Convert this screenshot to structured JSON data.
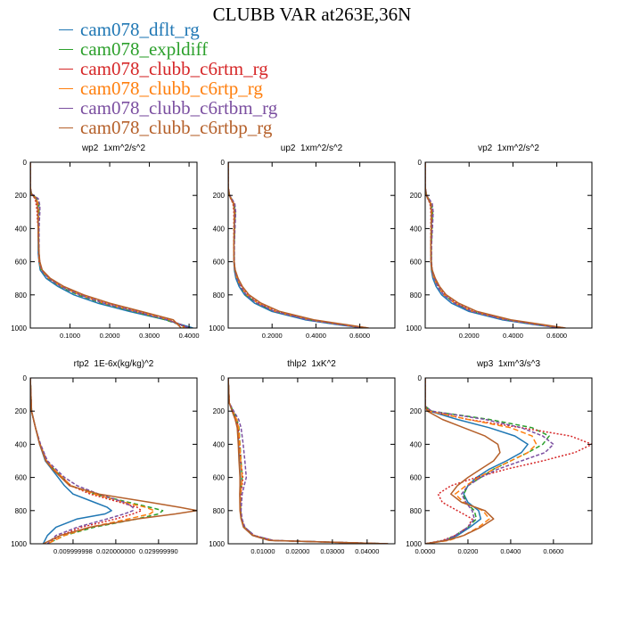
{
  "title": "CLUBB VAR at263E,36N",
  "legend": [
    {
      "label": "cam078_dflt_rg",
      "color": "#1f77b4"
    },
    {
      "label": "cam078_expldiff",
      "color": "#2ca02c"
    },
    {
      "label": "cam078_clubb_c6rtm_rg",
      "color": "#d62728"
    },
    {
      "label": "cam078_clubb_c6rtp_rg",
      "color": "#ff7f0e"
    },
    {
      "label": "cam078_clubb_c6rtbm_rg",
      "color": "#7b4fa0"
    },
    {
      "label": "cam078_clubb_c6rtbp_rg",
      "color": "#b5602a"
    }
  ],
  "series_styles": [
    {
      "color": "#1f77b4",
      "dash": ""
    },
    {
      "color": "#2ca02c",
      "dash": "5,3"
    },
    {
      "color": "#d62728",
      "dash": "2,2"
    },
    {
      "color": "#ff7f0e",
      "dash": "6,3"
    },
    {
      "color": "#7b4fa0",
      "dash": "4,2"
    },
    {
      "color": "#b5602a",
      "dash": ""
    }
  ],
  "chart_data": [
    {
      "type": "line",
      "title": "wp2  1xm^2/s^2",
      "xlim": [
        0,
        0.42
      ],
      "ylim": [
        1000,
        0
      ],
      "xticks": [
        0.1,
        0.2,
        0.3,
        0.4
      ],
      "xticklabels": [
        "0.1000",
        "0.2000",
        "0.3000",
        "0.4000"
      ],
      "yticks": [
        0,
        200,
        400,
        600,
        800,
        1000
      ],
      "y": [
        0,
        150,
        190,
        220,
        260,
        300,
        350,
        400,
        450,
        500,
        550,
        600,
        650,
        700,
        750,
        800,
        850,
        900,
        950,
        1000
      ],
      "series": [
        {
          "values": [
            0,
            0,
            0.002,
            0.015,
            0.02,
            0.02,
            0.02,
            0.02,
            0.02,
            0.02,
            0.02,
            0.022,
            0.025,
            0.04,
            0.07,
            0.11,
            0.17,
            0.25,
            0.34,
            0.41
          ]
        },
        {
          "values": [
            0,
            0,
            0.003,
            0.018,
            0.022,
            0.022,
            0.021,
            0.021,
            0.021,
            0.021,
            0.022,
            0.023,
            0.027,
            0.045,
            0.075,
            0.12,
            0.18,
            0.26,
            0.34,
            0.4
          ]
        },
        {
          "values": [
            0,
            0,
            0.002,
            0.012,
            0.015,
            0.017,
            0.018,
            0.02,
            0.02,
            0.021,
            0.021,
            0.022,
            0.028,
            0.048,
            0.08,
            0.13,
            0.19,
            0.27,
            0.35,
            0.4
          ]
        },
        {
          "values": [
            0,
            0,
            0.003,
            0.016,
            0.02,
            0.02,
            0.021,
            0.021,
            0.021,
            0.021,
            0.022,
            0.023,
            0.028,
            0.046,
            0.078,
            0.125,
            0.185,
            0.265,
            0.35,
            0.39
          ]
        },
        {
          "values": [
            0,
            0,
            0.003,
            0.02,
            0.024,
            0.024,
            0.023,
            0.022,
            0.022,
            0.022,
            0.022,
            0.024,
            0.028,
            0.046,
            0.077,
            0.125,
            0.185,
            0.265,
            0.345,
            0.4
          ]
        },
        {
          "values": [
            0,
            0,
            0.002,
            0.014,
            0.018,
            0.019,
            0.019,
            0.02,
            0.02,
            0.021,
            0.022,
            0.024,
            0.03,
            0.05,
            0.085,
            0.135,
            0.2,
            0.28,
            0.36,
            0.38
          ]
        }
      ]
    },
    {
      "type": "line",
      "title": "up2  1xm^2/s^2",
      "xlim": [
        0,
        0.76
      ],
      "ylim": [
        1000,
        0
      ],
      "xticks": [
        0.2,
        0.4,
        0.6
      ],
      "xticklabels": [
        "0.2000",
        "0.4000",
        "0.6000"
      ],
      "yticks": [
        0,
        200,
        400,
        600,
        800,
        1000
      ],
      "y": [
        0,
        150,
        200,
        250,
        300,
        400,
        500,
        600,
        650,
        700,
        750,
        800,
        850,
        900,
        950,
        980,
        1000
      ],
      "series": [
        {
          "values": [
            0,
            0,
            0.005,
            0.025,
            0.03,
            0.028,
            0.026,
            0.026,
            0.028,
            0.035,
            0.05,
            0.075,
            0.12,
            0.2,
            0.35,
            0.5,
            0.62
          ]
        },
        {
          "values": [
            0,
            0,
            0.006,
            0.028,
            0.032,
            0.03,
            0.027,
            0.027,
            0.03,
            0.04,
            0.055,
            0.08,
            0.13,
            0.21,
            0.37,
            0.52,
            0.63
          ]
        },
        {
          "values": [
            0,
            0,
            0.005,
            0.022,
            0.026,
            0.026,
            0.025,
            0.026,
            0.03,
            0.042,
            0.06,
            0.088,
            0.14,
            0.22,
            0.38,
            0.53,
            0.64
          ]
        },
        {
          "values": [
            0,
            0,
            0.006,
            0.026,
            0.03,
            0.028,
            0.026,
            0.027,
            0.03,
            0.04,
            0.057,
            0.085,
            0.135,
            0.215,
            0.37,
            0.52,
            0.63
          ]
        },
        {
          "values": [
            0,
            0,
            0.007,
            0.03,
            0.034,
            0.031,
            0.028,
            0.028,
            0.031,
            0.041,
            0.056,
            0.083,
            0.132,
            0.212,
            0.365,
            0.515,
            0.62
          ]
        },
        {
          "values": [
            0,
            0,
            0.005,
            0.024,
            0.028,
            0.027,
            0.026,
            0.027,
            0.032,
            0.045,
            0.065,
            0.095,
            0.15,
            0.235,
            0.39,
            0.54,
            0.64
          ]
        }
      ]
    },
    {
      "type": "line",
      "title": "vp2  1xm^2/s^2",
      "xlim": [
        0,
        0.76
      ],
      "ylim": [
        1000,
        0
      ],
      "xticks": [
        0.2,
        0.4,
        0.6
      ],
      "xticklabels": [
        "0.2000",
        "0.4000",
        "0.6000"
      ],
      "yticks": [
        0,
        200,
        400,
        600,
        800,
        1000
      ],
      "y": [
        0,
        150,
        200,
        250,
        300,
        400,
        500,
        600,
        650,
        700,
        750,
        800,
        850,
        900,
        950,
        980,
        1000
      ],
      "series": [
        {
          "values": [
            0,
            0,
            0.005,
            0.025,
            0.03,
            0.028,
            0.026,
            0.026,
            0.028,
            0.035,
            0.05,
            0.075,
            0.12,
            0.2,
            0.35,
            0.5,
            0.62
          ]
        },
        {
          "values": [
            0,
            0,
            0.006,
            0.03,
            0.034,
            0.031,
            0.028,
            0.028,
            0.031,
            0.042,
            0.058,
            0.085,
            0.135,
            0.215,
            0.37,
            0.52,
            0.63
          ]
        },
        {
          "values": [
            0,
            0,
            0.005,
            0.022,
            0.026,
            0.026,
            0.025,
            0.026,
            0.03,
            0.042,
            0.062,
            0.09,
            0.142,
            0.222,
            0.38,
            0.53,
            0.64
          ]
        },
        {
          "values": [
            0,
            0,
            0.006,
            0.026,
            0.03,
            0.028,
            0.026,
            0.027,
            0.03,
            0.04,
            0.057,
            0.085,
            0.135,
            0.215,
            0.37,
            0.52,
            0.63
          ]
        },
        {
          "values": [
            0,
            0,
            0.007,
            0.032,
            0.036,
            0.033,
            0.029,
            0.029,
            0.032,
            0.042,
            0.057,
            0.084,
            0.133,
            0.213,
            0.366,
            0.515,
            0.62
          ]
        },
        {
          "values": [
            0,
            0,
            0.005,
            0.024,
            0.028,
            0.027,
            0.026,
            0.027,
            0.032,
            0.046,
            0.066,
            0.096,
            0.152,
            0.236,
            0.39,
            0.54,
            0.64
          ]
        }
      ]
    },
    {
      "type": "line",
      "title": "rtp2  1E-6x(kg/kg)^2",
      "xlim": [
        0,
        0.039
      ],
      "ylim": [
        1000,
        0
      ],
      "xticks": [
        0.01,
        0.02,
        0.03
      ],
      "xticklabels": [
        "0.009999998",
        "0.020000000",
        "0.029999990"
      ],
      "yticks": [
        0,
        200,
        400,
        600,
        800,
        1000
      ],
      "y": [
        0,
        200,
        300,
        400,
        500,
        550,
        600,
        650,
        700,
        750,
        780,
        800,
        820,
        850,
        900,
        950,
        1000
      ],
      "series": [
        {
          "values": [
            0,
            0.0003,
            0.0012,
            0.0022,
            0.0035,
            0.005,
            0.0065,
            0.008,
            0.01,
            0.015,
            0.018,
            0.019,
            0.0175,
            0.011,
            0.006,
            0.004,
            0.003
          ]
        },
        {
          "values": [
            0,
            0.0003,
            0.0012,
            0.0023,
            0.0038,
            0.0055,
            0.0075,
            0.0095,
            0.015,
            0.023,
            0.028,
            0.031,
            0.03,
            0.025,
            0.015,
            0.008,
            0.004
          ]
        },
        {
          "values": [
            0,
            0.0003,
            0.0012,
            0.0023,
            0.0038,
            0.0055,
            0.0075,
            0.0095,
            0.014,
            0.021,
            0.025,
            0.026,
            0.024,
            0.02,
            0.012,
            0.007,
            0.004
          ]
        },
        {
          "values": [
            0,
            0.0003,
            0.0012,
            0.0023,
            0.0038,
            0.0055,
            0.0075,
            0.0095,
            0.015,
            0.022,
            0.027,
            0.029,
            0.028,
            0.023,
            0.014,
            0.008,
            0.004
          ]
        },
        {
          "values": [
            0,
            0.0003,
            0.0012,
            0.0024,
            0.004,
            0.006,
            0.008,
            0.011,
            0.016,
            0.022,
            0.024,
            0.024,
            0.022,
            0.018,
            0.011,
            0.006,
            0.004
          ]
        },
        {
          "values": [
            0,
            0.0003,
            0.0012,
            0.0022,
            0.0036,
            0.0052,
            0.0072,
            0.0092,
            0.016,
            0.028,
            0.035,
            0.039,
            0.034,
            0.025,
            0.014,
            0.007,
            0.003
          ]
        }
      ]
    },
    {
      "type": "line",
      "title": "thlp2  1xK^2",
      "xlim": [
        0,
        0.048
      ],
      "ylim": [
        1000,
        0
      ],
      "xticks": [
        0.01,
        0.02,
        0.03,
        0.04
      ],
      "xticklabels": [
        "0.01000",
        "0.02000",
        "0.03000",
        "0.04000"
      ],
      "yticks": [
        0,
        200,
        400,
        600,
        800,
        1000
      ],
      "y": [
        0,
        150,
        200,
        250,
        300,
        400,
        500,
        600,
        650,
        700,
        800,
        850,
        900,
        950,
        980,
        1000
      ],
      "series": [
        {
          "values": [
            0,
            0.0003,
            0.0012,
            0.0022,
            0.0028,
            0.003,
            0.0032,
            0.0035,
            0.0035,
            0.0034,
            0.0035,
            0.0038,
            0.0045,
            0.007,
            0.012,
            0.046
          ]
        },
        {
          "values": [
            0,
            0.0003,
            0.0014,
            0.0025,
            0.0031,
            0.0034,
            0.0037,
            0.004,
            0.0038,
            0.0036,
            0.0036,
            0.0039,
            0.0047,
            0.0075,
            0.013,
            0.046
          ]
        },
        {
          "values": [
            0,
            0.0003,
            0.0012,
            0.0023,
            0.0029,
            0.0033,
            0.0036,
            0.0042,
            0.004,
            0.0036,
            0.0035,
            0.0038,
            0.0046,
            0.0075,
            0.013,
            0.046
          ]
        },
        {
          "values": [
            0,
            0.0003,
            0.0013,
            0.0024,
            0.003,
            0.0033,
            0.0036,
            0.004,
            0.0038,
            0.0035,
            0.0035,
            0.0038,
            0.0046,
            0.0073,
            0.0125,
            0.046
          ]
        },
        {
          "values": [
            0,
            0.0003,
            0.0016,
            0.003,
            0.0037,
            0.0043,
            0.0048,
            0.0052,
            0.0046,
            0.004,
            0.0037,
            0.004,
            0.0048,
            0.0075,
            0.013,
            0.046
          ]
        },
        {
          "values": [
            0,
            0.0003,
            0.0011,
            0.002,
            0.0026,
            0.0029,
            0.0031,
            0.0034,
            0.0034,
            0.0033,
            0.0034,
            0.0037,
            0.0044,
            0.007,
            0.0118,
            0.046
          ]
        }
      ]
    },
    {
      "type": "line",
      "title": "wp3  1xm^3/s^3",
      "xlim": [
        0,
        0.078
      ],
      "ylim": [
        1000,
        0
      ],
      "xticks": [
        0,
        0.02,
        0.04,
        0.06
      ],
      "xticklabels": [
        "0.0000",
        "0.0200",
        "0.0400",
        "0.0600"
      ],
      "yticks": [
        0,
        200,
        400,
        600,
        800,
        1000
      ],
      "y": [
        0,
        170,
        200,
        250,
        300,
        350,
        400,
        450,
        500,
        550,
        600,
        650,
        700,
        750,
        800,
        850,
        900,
        950,
        980,
        1000
      ],
      "series": [
        {
          "values": [
            0,
            0,
            0.002,
            0.015,
            0.03,
            0.042,
            0.048,
            0.045,
            0.038,
            0.03,
            0.024,
            0.02,
            0.018,
            0.02,
            0.025,
            0.026,
            0.021,
            0.015,
            0.01,
            0.0
          ]
        },
        {
          "values": [
            0,
            0,
            0.003,
            0.03,
            0.05,
            0.058,
            0.055,
            0.048,
            0.04,
            0.032,
            0.026,
            0.02,
            0.018,
            0.019,
            0.023,
            0.024,
            0.02,
            0.014,
            0.009,
            0.0
          ]
        },
        {
          "values": [
            0,
            0,
            0.002,
            0.02,
            0.045,
            0.068,
            0.078,
            0.07,
            0.055,
            0.038,
            0.024,
            0.012,
            0.006,
            0.008,
            0.015,
            0.022,
            0.02,
            0.014,
            0.008,
            0.0
          ]
        },
        {
          "values": [
            0,
            0,
            0.002,
            0.02,
            0.04,
            0.05,
            0.052,
            0.048,
            0.04,
            0.032,
            0.025,
            0.019,
            0.014,
            0.018,
            0.027,
            0.03,
            0.025,
            0.018,
            0.011,
            0.0
          ]
        },
        {
          "values": [
            0,
            0,
            0.003,
            0.028,
            0.045,
            0.055,
            0.06,
            0.056,
            0.045,
            0.034,
            0.026,
            0.02,
            0.017,
            0.019,
            0.022,
            0.023,
            0.02,
            0.014,
            0.009,
            0.0
          ]
        },
        {
          "values": [
            0,
            0,
            0.001,
            0.008,
            0.018,
            0.028,
            0.034,
            0.035,
            0.032,
            0.026,
            0.02,
            0.015,
            0.012,
            0.017,
            0.028,
            0.032,
            0.026,
            0.018,
            0.01,
            0.0
          ]
        }
      ]
    }
  ]
}
